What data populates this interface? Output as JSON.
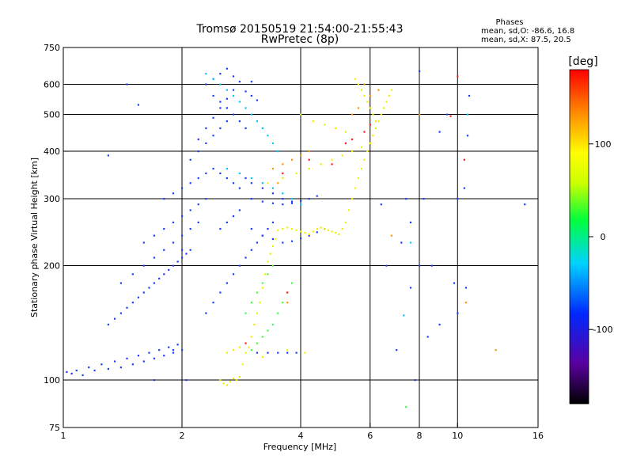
{
  "chart_data": {
    "type": "scatter",
    "title": "Tromsø 20150519 21:54:00-21:55:43",
    "subtitle": "RwPretec (8p)",
    "xlabel": "Frequency [MHz]",
    "ylabel": "Stationary phase Virtual Height [km]",
    "x_scale": "log",
    "y_scale": "log",
    "xlim": [
      1,
      16
    ],
    "ylim": [
      75,
      750
    ],
    "x_ticks": [
      1,
      2,
      4,
      6,
      8,
      10,
      16
    ],
    "y_ticks": [
      75,
      100,
      200,
      300,
      400,
      500,
      600,
      750
    ],
    "x_grid": [
      2,
      4,
      6,
      8,
      10
    ],
    "y_grid": [
      100,
      200,
      300,
      400,
      500,
      600
    ],
    "grid": true,
    "phase_box": {
      "title": "Phases",
      "line1": "mean, sd,O: -86.6, 16.8",
      "line2": "mean, sd,X:  87.5, 20.5"
    },
    "colorbar": {
      "label": "[deg]",
      "ticks": [
        "100",
        "0",
        "-100"
      ],
      "tick_values": [
        100,
        0,
        -100
      ],
      "range": [
        -180,
        180
      ]
    },
    "series": [
      {
        "color": "#1e3cff",
        "x": [
          1.02,
          1.05,
          1.08,
          1.12,
          1.16,
          1.2,
          1.25,
          1.3,
          1.35,
          1.4,
          1.45,
          1.5,
          1.55,
          1.6,
          1.65,
          1.7,
          1.75,
          1.8,
          1.85,
          1.9,
          1.95,
          2.0,
          1.3,
          1.35,
          1.4,
          1.45,
          1.5,
          1.55,
          1.6,
          1.65,
          1.7,
          1.75,
          1.8,
          1.85,
          1.9,
          1.95,
          2.0,
          2.05,
          2.1,
          1.4,
          1.5,
          1.6,
          1.7,
          1.8,
          1.9,
          2.0,
          2.1,
          2.2,
          1.6,
          1.7,
          1.8,
          1.9,
          2.0,
          2.1,
          2.2,
          2.3,
          1.8,
          1.9,
          2.0,
          2.1,
          2.2,
          2.3,
          2.4,
          2.1,
          2.2,
          2.3,
          2.4,
          2.5,
          2.6,
          2.2,
          2.3,
          2.4,
          2.5,
          2.6,
          2.7,
          2.3,
          2.4,
          2.5,
          2.6,
          2.7,
          2.8,
          2.4,
          2.5,
          2.6,
          2.7,
          2.8,
          2.9,
          3.0,
          3.2,
          3.4,
          3.6,
          3.8,
          4.0,
          4.2,
          4.4,
          2.5,
          2.6,
          2.7,
          2.8,
          2.5,
          2.6,
          2.7,
          2.8,
          2.9,
          3.0,
          3.2,
          3.4,
          3.6,
          3.8,
          3.0,
          3.2,
          3.4,
          3.6,
          3.8,
          4.0,
          4.2,
          4.4,
          4.6,
          3.1,
          3.3,
          3.5,
          3.7,
          3.9,
          2.3,
          2.4,
          2.5,
          2.6,
          2.7,
          2.8,
          2.9,
          3.0,
          3.1,
          3.2,
          3.3,
          3.4,
          1.45,
          1.55,
          1.3,
          1.9,
          2.05,
          2.0,
          1.7,
          2.9,
          3.0,
          3.1,
          3.0
        ],
        "y": [
          105,
          104,
          106,
          103,
          108,
          106,
          110,
          107,
          112,
          108,
          114,
          110,
          116,
          112,
          118,
          114,
          120,
          116,
          122,
          118,
          124,
          120,
          140,
          145,
          150,
          155,
          160,
          165,
          170,
          175,
          180,
          185,
          190,
          195,
          200,
          205,
          210,
          215,
          220,
          180,
          190,
          200,
          210,
          220,
          230,
          240,
          250,
          260,
          230,
          240,
          250,
          260,
          270,
          280,
          290,
          300,
          300,
          310,
          320,
          330,
          340,
          350,
          360,
          380,
          400,
          420,
          440,
          460,
          480,
          430,
          460,
          490,
          520,
          550,
          580,
          600,
          620,
          640,
          660,
          630,
          610,
          560,
          540,
          520,
          500,
          480,
          460,
          300,
          295,
          292,
          290,
          292,
          296,
          300,
          305,
          250,
          260,
          270,
          280,
          350,
          340,
          330,
          320,
          340,
          330,
          320,
          310,
          300,
          295,
          250,
          240,
          235,
          230,
          232,
          236,
          240,
          245,
          250,
          118,
          118,
          118,
          118,
          118,
          150,
          160,
          170,
          180,
          190,
          200,
          210,
          220,
          230,
          240,
          250,
          260,
          600,
          530,
          390,
          120,
          100,
          220,
          100,
          575,
          560,
          545,
          610
        ]
      },
      {
        "color": "#00c8ff",
        "x": [
          2.3,
          2.4,
          2.5,
          2.6,
          2.7,
          2.8,
          2.9,
          3.0,
          3.1,
          3.2,
          3.3,
          3.4,
          3.5,
          2.6,
          2.8,
          3.0,
          3.2,
          3.4,
          3.6,
          3.8,
          4.0,
          7.3,
          7.6,
          10.6
        ],
        "y": [
          640,
          620,
          600,
          580,
          560,
          540,
          520,
          500,
          480,
          460,
          440,
          420,
          400,
          360,
          350,
          340,
          330,
          320,
          310,
          300,
          290,
          148,
          230,
          500
        ]
      },
      {
        "color": "#40ff40",
        "x": [
          3.0,
          3.1,
          3.2,
          3.3,
          3.4,
          3.5,
          3.6,
          3.7,
          3.8,
          2.9,
          3.0,
          3.1,
          3.2,
          3.3,
          3.4,
          7.4
        ],
        "y": [
          120,
          125,
          130,
          135,
          140,
          150,
          160,
          170,
          180,
          150,
          160,
          170,
          180,
          190,
          200,
          85
        ]
      },
      {
        "color": "#f0f000",
        "x": [
          2.5,
          2.55,
          2.6,
          2.65,
          2.7,
          2.75,
          2.8,
          2.85,
          2.9,
          2.95,
          3.0,
          3.05,
          3.1,
          3.15,
          3.2,
          3.25,
          3.3,
          3.35,
          3.4,
          3.45,
          3.5,
          3.6,
          3.7,
          3.8,
          3.9,
          4.0,
          4.1,
          4.2,
          4.3,
          4.4,
          4.5,
          4.6,
          4.7,
          4.8,
          4.9,
          5.0,
          5.1,
          5.2,
          5.3,
          5.4,
          5.5,
          5.6,
          5.7,
          5.8,
          5.9,
          6.0,
          6.1,
          6.2,
          6.3,
          6.4,
          6.5,
          6.6,
          6.7,
          6.8,
          5.5,
          5.6,
          5.7,
          5.8,
          5.9,
          6.0,
          6.1,
          6.2,
          4.0,
          4.3,
          4.6,
          4.9,
          5.2,
          3.3,
          3.6,
          3.9,
          4.2,
          4.5,
          4.8,
          5.1,
          5.4,
          5.7,
          6.0,
          2.6,
          2.7,
          2.8,
          3.7,
          4.1,
          3.2
        ],
        "y": [
          100,
          98,
          97,
          99,
          101,
          100,
          102,
          110,
          118,
          122,
          130,
          140,
          150,
          160,
          175,
          190,
          205,
          215,
          225,
          235,
          248,
          250,
          252,
          250,
          248,
          246,
          244,
          242,
          246,
          250,
          252,
          250,
          248,
          246,
          244,
          242,
          250,
          260,
          280,
          300,
          320,
          340,
          360,
          380,
          400,
          420,
          440,
          460,
          480,
          500,
          520,
          540,
          560,
          580,
          620,
          600,
          580,
          560,
          540,
          520,
          500,
          480,
          500,
          480,
          470,
          460,
          450,
          330,
          340,
          350,
          360,
          370,
          380,
          390,
          400,
          410,
          420,
          118,
          120,
          122,
          120,
          118,
          115
        ]
      },
      {
        "color": "#ff9600",
        "x": [
          3.4,
          3.6,
          3.8,
          4.0,
          4.2,
          5.8,
          6.0,
          5.4,
          5.6,
          6.3,
          3.7,
          6.8,
          8.0,
          10.5,
          12.5,
          3.5
        ],
        "y": [
          360,
          370,
          380,
          390,
          400,
          600,
          560,
          500,
          520,
          580,
          160,
          240,
          500,
          160,
          120,
          330
        ]
      },
      {
        "color": "#ff1e1e",
        "x": [
          3.6,
          4.2,
          4.8,
          5.2,
          5.4,
          5.8,
          6.0,
          9.6,
          10.0,
          10.4,
          3.7,
          2.9
        ],
        "y": [
          350,
          380,
          370,
          420,
          430,
          450,
          470,
          495,
          630,
          380,
          170,
          125
        ]
      },
      {
        "color": "#1e3cff",
        "x": [
          7.4,
          7.6,
          8.0,
          8.2,
          8.6,
          9.0,
          9.4,
          10.0,
          10.4,
          10.6,
          14.8,
          7.2,
          7.6,
          8.0,
          9.0,
          10.0,
          10.5,
          6.4,
          6.6,
          7.0,
          7.8,
          8.4,
          9.8,
          10.7
        ],
        "y": [
          300,
          260,
          650,
          300,
          200,
          450,
          500,
          300,
          320,
          440,
          290,
          230,
          175,
          200,
          140,
          150,
          175,
          290,
          200,
          120,
          100,
          130,
          180,
          560
        ]
      }
    ]
  }
}
